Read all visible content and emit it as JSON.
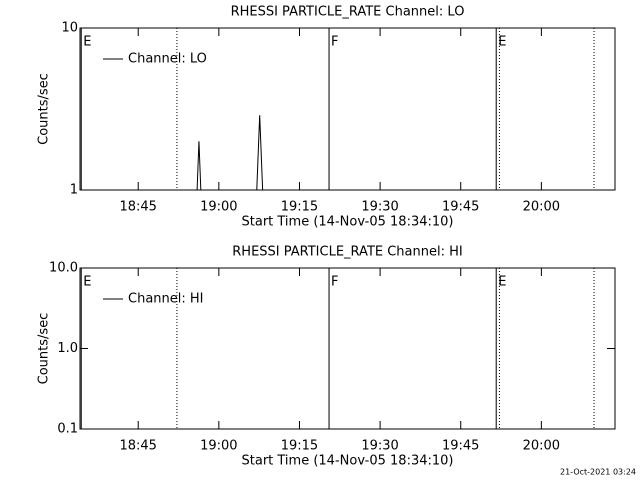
{
  "chart_data": [
    {
      "type": "line",
      "title": "RHESSI PARTICLE_RATE Channel: LO",
      "y_label": "Counts/sec",
      "x_label": "Start Time (14-Nov-05 18:34:10)",
      "log_y": true,
      "ylim": [
        1,
        10
      ],
      "yticks": [
        1,
        10
      ],
      "xlim": [
        1114.17,
        1213.7
      ],
      "xticks": [
        {
          "value": 1125,
          "label": "18:45"
        },
        {
          "value": 1140,
          "label": "19:00"
        },
        {
          "value": 1155,
          "label": "19:15"
        },
        {
          "value": 1170,
          "label": "19:30"
        },
        {
          "value": 1185,
          "label": "19:45"
        },
        {
          "value": 1200,
          "label": "20:00"
        }
      ],
      "legend": "upper left",
      "series": [
        {
          "name": "Channel: LO",
          "color": "#000000",
          "x": [
            1135.9,
            1136.3,
            1136.7,
            1147.0,
            1147.6,
            1148.2
          ],
          "values": [
            0.9,
            2,
            0.9,
            0.9,
            2.9,
            0.9
          ]
        }
      ],
      "events": [
        {
          "label": "E",
          "x": 1114.4
        },
        {
          "label": "F",
          "x": 1160.5
        },
        {
          "label": "E",
          "x": 1191.6
        }
      ],
      "dotted_lines": [
        1132.2,
        1192.2,
        1209.8
      ]
    },
    {
      "type": "line",
      "title": "RHESSI PARTICLE_RATE Channel: HI",
      "y_label": "Counts/sec",
      "x_label": "Start Time (14-Nov-05 18:34:10)",
      "log_y": true,
      "ylim": [
        0.1,
        10
      ],
      "yticks": [
        0.1,
        {
          "value": 1,
          "label": "1.0"
        },
        {
          "value": 10,
          "label": "10.0"
        }
      ],
      "xlim": [
        1114.17,
        1213.7
      ],
      "xticks": [
        {
          "value": 1125,
          "label": "18:45"
        },
        {
          "value": 1140,
          "label": "19:00"
        },
        {
          "value": 1155,
          "label": "19:15"
        },
        {
          "value": 1170,
          "label": "19:30"
        },
        {
          "value": 1185,
          "label": "19:45"
        },
        {
          "value": 1200,
          "label": "20:00"
        }
      ],
      "legend": "upper left",
      "series": [
        {
          "name": "Channel: HI",
          "color": "#000000",
          "x": [],
          "values": []
        }
      ],
      "events": [
        {
          "label": "E",
          "x": 1114.4
        },
        {
          "label": "F",
          "x": 1160.5
        },
        {
          "label": "E",
          "x": 1191.6
        }
      ],
      "dotted_lines": [
        1132.2,
        1192.2,
        1209.8
      ]
    }
  ],
  "footer": "21-Oct-2021 03:24"
}
